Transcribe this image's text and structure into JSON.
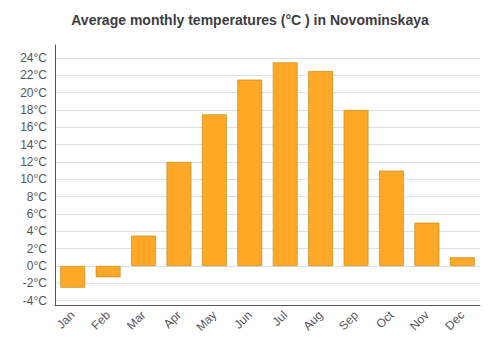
{
  "chart_data": {
    "type": "bar",
    "title": "Average monthly temperatures (°C ) in Novominskaya",
    "categories": [
      "Jan",
      "Feb",
      "Mar",
      "Apr",
      "May",
      "Jun",
      "Jul",
      "Aug",
      "Sep",
      "Oct",
      "Nov",
      "Dec"
    ],
    "values": [
      -2.5,
      -1.3,
      3.5,
      12,
      17.5,
      21.5,
      23.5,
      22.5,
      18,
      11,
      5,
      1
    ],
    "color": "#FFA726",
    "ylim": [
      -4.5,
      25.5
    ],
    "yticks": [
      {
        "value": -4,
        "label": "-4°C"
      },
      {
        "value": -2,
        "label": "-2°C"
      },
      {
        "value": 0,
        "label": "0°C"
      },
      {
        "value": 2,
        "label": "2°C"
      },
      {
        "value": 4,
        "label": "4°C"
      },
      {
        "value": 6,
        "label": "6°C"
      },
      {
        "value": 8,
        "label": "8°C"
      },
      {
        "value": 10,
        "label": "10°C"
      },
      {
        "value": 12,
        "label": "12°C"
      },
      {
        "value": 14,
        "label": "14°C"
      },
      {
        "value": 16,
        "label": "16°C"
      },
      {
        "value": 18,
        "label": "18°C"
      },
      {
        "value": 20,
        "label": "20°C"
      },
      {
        "value": 22,
        "label": "22°C"
      },
      {
        "value": 24,
        "label": "24°C"
      }
    ],
    "grid": true
  }
}
